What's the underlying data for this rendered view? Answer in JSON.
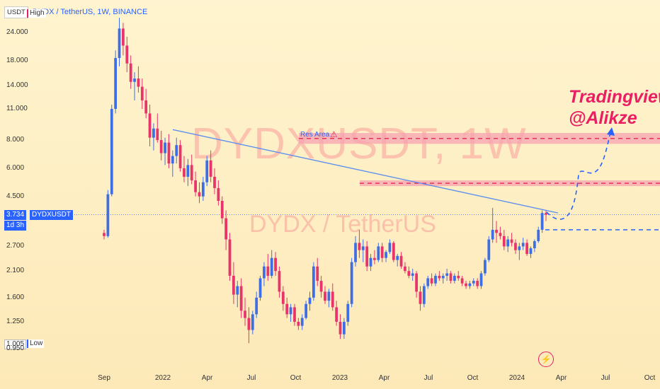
{
  "header": {
    "quote_button": "USDT",
    "symbol": "DYDX / TetherUS, 1W, BINANCE"
  },
  "watermark": {
    "big": "DYDXUSDT, 1W",
    "small": "DYDX / TetherUS"
  },
  "signature": {
    "line1": "Tradingview",
    "line2": "@Alikze"
  },
  "resistance_label": "Res Area",
  "warning_icon": "⚠",
  "price_tag": {
    "value": "3.734",
    "symbol": "DYDXUSDT",
    "countdown": "1d 3h"
  },
  "high_tag": "High",
  "low_tag": {
    "value": "1.005",
    "label": "Low"
  },
  "flash_icon": "⚡",
  "colors": {
    "up": "#3d6ee6",
    "down": "#e8336b",
    "trendline": "#5a8df0",
    "zone": "#f6a3b0",
    "dashed_red": "#e5335b",
    "dashed_blue": "#2962ff"
  },
  "chart_data": {
    "type": "candlestick",
    "title": "DYDX / TetherUS, 1W, BINANCE",
    "y_scale": "log",
    "y_ticks": [
      "24.000",
      "18.000",
      "14.000",
      "11.000",
      "8.000",
      "6.000",
      "4.500",
      "2.700",
      "2.100",
      "1.600",
      "1.250",
      "0.950"
    ],
    "x_ticks": [
      "Sep",
      "2022",
      "Apr",
      "Jul",
      "Oct",
      "2023",
      "Apr",
      "Jul",
      "Oct",
      "2024",
      "Apr",
      "Jul",
      "Oct"
    ],
    "last_price": 3.734,
    "high": 27.9,
    "low": 1.005,
    "resistance_zones": [
      {
        "label": "Res Area",
        "from": 7.7,
        "to": 8.6
      },
      {
        "label": "",
        "from": 5.0,
        "to": 5.3
      }
    ],
    "support_level": 3.2,
    "trendline": {
      "from": {
        "date": "2022-02",
        "price": 8.9
      },
      "to": {
        "date": "2024-03",
        "price": 3.8
      }
    },
    "candles": [
      [
        3.1,
        3.2,
        2.9,
        3.0
      ],
      [
        3.0,
        4.8,
        2.95,
        4.6
      ],
      [
        4.6,
        11.5,
        4.5,
        11.0
      ],
      [
        11.0,
        20.0,
        10.5,
        18.5
      ],
      [
        18.5,
        27.9,
        17.0,
        25.0
      ],
      [
        25.0,
        26.5,
        19.0,
        21.0
      ],
      [
        21.0,
        23.0,
        16.0,
        17.5
      ],
      [
        17.5,
        19.0,
        13.5,
        14.5
      ],
      [
        14.5,
        16.0,
        12.0,
        15.0
      ],
      [
        15.0,
        17.0,
        13.0,
        13.8
      ],
      [
        13.8,
        15.0,
        11.0,
        12.0
      ],
      [
        12.0,
        13.5,
        10.0,
        10.5
      ],
      [
        10.5,
        11.5,
        7.5,
        8.2
      ],
      [
        8.2,
        9.5,
        7.2,
        9.0
      ],
      [
        9.0,
        10.5,
        7.8,
        8.0
      ],
      [
        8.0,
        8.8,
        6.5,
        7.0
      ],
      [
        7.0,
        8.2,
        6.2,
        7.8
      ],
      [
        7.8,
        8.5,
        6.0,
        6.3
      ],
      [
        6.3,
        7.2,
        5.5,
        6.8
      ],
      [
        6.8,
        8.2,
        6.3,
        7.6
      ],
      [
        7.6,
        8.0,
        5.8,
        6.0
      ],
      [
        6.0,
        6.8,
        5.2,
        5.5
      ],
      [
        5.5,
        6.6,
        5.0,
        6.2
      ],
      [
        6.2,
        6.9,
        5.1,
        5.3
      ],
      [
        5.3,
        5.8,
        4.5,
        4.7
      ],
      [
        4.7,
        5.2,
        4.2,
        4.5
      ],
      [
        4.5,
        5.5,
        4.3,
        5.2
      ],
      [
        5.2,
        6.8,
        5.0,
        6.5
      ],
      [
        6.5,
        7.2,
        5.2,
        5.5
      ],
      [
        5.5,
        6.0,
        4.6,
        4.9
      ],
      [
        4.9,
        5.3,
        4.1,
        4.3
      ],
      [
        4.3,
        4.5,
        3.4,
        3.6
      ],
      [
        3.6,
        3.9,
        2.6,
        2.9
      ],
      [
        2.9,
        3.1,
        1.9,
        2.0
      ],
      [
        2.0,
        2.3,
        1.5,
        1.65
      ],
      [
        1.65,
        1.9,
        1.45,
        1.8
      ],
      [
        1.8,
        1.95,
        1.3,
        1.4
      ],
      [
        1.4,
        1.6,
        1.2,
        1.3
      ],
      [
        1.3,
        1.45,
        1.005,
        1.15
      ],
      [
        1.15,
        1.4,
        1.1,
        1.35
      ],
      [
        1.35,
        1.7,
        1.3,
        1.6
      ],
      [
        1.6,
        2.0,
        1.55,
        1.95
      ],
      [
        1.95,
        2.3,
        1.8,
        2.2
      ],
      [
        2.2,
        2.5,
        1.9,
        2.0
      ],
      [
        2.0,
        2.6,
        1.95,
        2.4
      ],
      [
        2.4,
        2.55,
        2.0,
        2.1
      ],
      [
        2.1,
        2.2,
        1.6,
        1.7
      ],
      [
        1.7,
        1.8,
        1.4,
        1.5
      ],
      [
        1.5,
        1.6,
        1.3,
        1.35
      ],
      [
        1.35,
        1.5,
        1.25,
        1.45
      ],
      [
        1.45,
        1.5,
        1.2,
        1.25
      ],
      [
        1.25,
        1.3,
        1.15,
        1.2
      ],
      [
        1.2,
        1.35,
        1.15,
        1.3
      ],
      [
        1.3,
        1.55,
        1.28,
        1.5
      ],
      [
        1.5,
        1.7,
        1.4,
        1.6
      ],
      [
        1.6,
        2.3,
        1.55,
        2.2
      ],
      [
        2.2,
        2.4,
        1.8,
        1.9
      ],
      [
        1.9,
        2.0,
        1.6,
        1.7
      ],
      [
        1.7,
        1.8,
        1.5,
        1.55
      ],
      [
        1.55,
        1.75,
        1.45,
        1.7
      ],
      [
        1.7,
        1.85,
        1.4,
        1.45
      ],
      [
        1.45,
        1.55,
        1.2,
        1.25
      ],
      [
        1.25,
        1.35,
        1.05,
        1.1
      ],
      [
        1.1,
        1.3,
        1.05,
        1.25
      ],
      [
        1.25,
        1.55,
        1.2,
        1.5
      ],
      [
        1.5,
        2.4,
        1.45,
        2.3
      ],
      [
        2.3,
        3.0,
        2.2,
        2.8
      ],
      [
        2.8,
        3.2,
        2.4,
        2.6
      ],
      [
        2.6,
        2.9,
        2.3,
        2.7
      ],
      [
        2.7,
        2.85,
        2.1,
        2.2
      ],
      [
        2.2,
        2.5,
        2.1,
        2.4
      ],
      [
        2.4,
        2.6,
        2.25,
        2.35
      ],
      [
        2.35,
        2.8,
        2.3,
        2.7
      ],
      [
        2.7,
        2.8,
        2.3,
        2.4
      ],
      [
        2.4,
        2.6,
        2.3,
        2.55
      ],
      [
        2.55,
        2.9,
        2.5,
        2.8
      ],
      [
        2.8,
        2.85,
        2.3,
        2.35
      ],
      [
        2.35,
        2.5,
        2.2,
        2.45
      ],
      [
        2.45,
        2.55,
        2.15,
        2.2
      ],
      [
        2.2,
        2.3,
        2.05,
        2.1
      ],
      [
        2.1,
        2.2,
        1.95,
        2.0
      ],
      [
        2.0,
        2.15,
        1.9,
        2.05
      ],
      [
        2.05,
        2.1,
        1.6,
        1.7
      ],
      [
        1.7,
        1.8,
        1.4,
        1.5
      ],
      [
        1.5,
        1.85,
        1.45,
        1.8
      ],
      [
        1.8,
        2.0,
        1.75,
        1.95
      ],
      [
        1.95,
        2.05,
        1.8,
        1.85
      ],
      [
        1.85,
        2.05,
        1.8,
        2.0
      ],
      [
        2.0,
        2.1,
        1.9,
        1.95
      ],
      [
        1.95,
        2.05,
        1.85,
        2.0
      ],
      [
        2.0,
        2.15,
        1.9,
        2.05
      ],
      [
        2.05,
        2.1,
        1.85,
        1.9
      ],
      [
        1.9,
        2.05,
        1.85,
        2.0
      ],
      [
        2.0,
        2.1,
        1.9,
        1.95
      ],
      [
        1.95,
        2.0,
        1.8,
        1.85
      ],
      [
        1.85,
        1.9,
        1.75,
        1.8
      ],
      [
        1.8,
        1.9,
        1.75,
        1.85
      ],
      [
        1.85,
        1.95,
        1.8,
        1.9
      ],
      [
        1.9,
        1.95,
        1.75,
        1.8
      ],
      [
        1.8,
        2.1,
        1.75,
        2.05
      ],
      [
        2.05,
        2.4,
        2.0,
        2.35
      ],
      [
        2.35,
        3.0,
        2.3,
        2.9
      ],
      [
        2.9,
        4.0,
        2.8,
        3.2
      ],
      [
        3.2,
        3.5,
        2.8,
        3.1
      ],
      [
        3.1,
        3.3,
        2.9,
        3.0
      ],
      [
        3.0,
        3.2,
        2.6,
        2.7
      ],
      [
        2.7,
        3.0,
        2.55,
        2.9
      ],
      [
        2.9,
        3.1,
        2.7,
        2.8
      ],
      [
        2.8,
        2.9,
        2.5,
        2.6
      ],
      [
        2.6,
        2.8,
        2.35,
        2.7
      ],
      [
        2.7,
        2.95,
        2.6,
        2.8
      ],
      [
        2.8,
        2.9,
        2.45,
        2.5
      ],
      [
        2.5,
        2.7,
        2.4,
        2.65
      ],
      [
        2.65,
        2.9,
        2.55,
        2.85
      ],
      [
        2.85,
        3.3,
        2.8,
        3.2
      ],
      [
        3.2,
        3.9,
        3.1,
        3.8
      ],
      [
        3.8,
        3.9,
        3.5,
        3.734
      ]
    ]
  }
}
